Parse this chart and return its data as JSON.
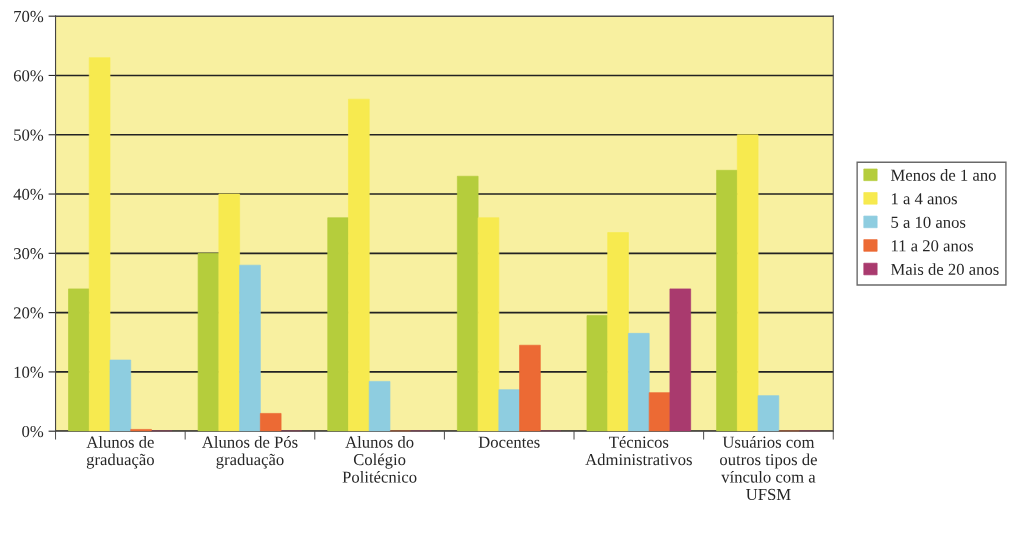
{
  "chart_data": {
    "type": "bar",
    "categories": [
      "Alunos de\ngraduação",
      "Alunos de Pós\ngraduação",
      "Alunos do\nColégio\nPolitécnico",
      "Docentes",
      "Técnicos\nAdministrativos",
      "Usuários com\noutros tipos de\nvínculo com a\nUFSM"
    ],
    "series": [
      {
        "name": "Menos de 1 ano",
        "color": "#b5cd3c",
        "values": [
          24,
          30,
          36,
          43,
          19.5,
          44
        ]
      },
      {
        "name": "1 a 4 anos",
        "color": "#f7ea4f",
        "values": [
          63,
          40,
          56,
          36,
          33.5,
          50
        ]
      },
      {
        "name": "5 a 10 anos",
        "color": "#8ecde0",
        "values": [
          12,
          28,
          8.4,
          7,
          16.5,
          6
        ]
      },
      {
        "name": "11 a 20 anos",
        "color": "#ec6a34",
        "values": [
          0.3,
          3,
          0,
          14.5,
          6.5,
          0
        ]
      },
      {
        "name": "Mais de 20 anos",
        "color": "#a93a6e",
        "values": [
          0,
          0,
          0,
          0,
          24,
          0
        ]
      }
    ],
    "ylim": [
      0,
      70
    ],
    "yticks": [
      {
        "value": 0,
        "label": "0%"
      },
      {
        "value": 10,
        "label": "10%"
      },
      {
        "value": 20,
        "label": "20%"
      },
      {
        "value": 30,
        "label": "30%"
      },
      {
        "value": 40,
        "label": "40%"
      },
      {
        "value": 50,
        "label": "50%"
      },
      {
        "value": 60,
        "label": "60%"
      },
      {
        "value": 70,
        "label": "70%"
      }
    ],
    "grid": "y",
    "legend": "right"
  }
}
